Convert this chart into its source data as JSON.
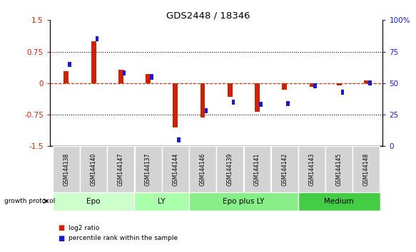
{
  "title": "GDS2448 / 18346",
  "samples": [
    "GSM144138",
    "GSM144140",
    "GSM144147",
    "GSM144137",
    "GSM144144",
    "GSM144146",
    "GSM144139",
    "GSM144141",
    "GSM144142",
    "GSM144143",
    "GSM144145",
    "GSM144148"
  ],
  "log2_ratio": [
    0.28,
    1.0,
    0.32,
    0.22,
    -1.05,
    -0.82,
    -0.32,
    -0.68,
    -0.15,
    -0.08,
    -0.05,
    0.07
  ],
  "percentile_rank": [
    65,
    85,
    58,
    55,
    5,
    28,
    35,
    33,
    34,
    48,
    43,
    50
  ],
  "groups": [
    {
      "label": "Epo",
      "start": 0,
      "end": 3
    },
    {
      "label": "LY",
      "start": 3,
      "end": 5
    },
    {
      "label": "Epo plus LY",
      "start": 5,
      "end": 9
    },
    {
      "label": "Medium",
      "start": 9,
      "end": 12
    }
  ],
  "group_colors": [
    "#ccffcc",
    "#aaffaa",
    "#88ee88",
    "#44cc44"
  ],
  "ylim_left": [
    -1.5,
    1.5
  ],
  "ylim_right": [
    0,
    100
  ],
  "yticks_left": [
    -1.5,
    -0.75,
    0,
    0.75,
    1.5
  ],
  "yticks_right": [
    0,
    25,
    50,
    75,
    100
  ],
  "hlines": [
    0.75,
    -0.75
  ],
  "bar_color_red": "#cc2200",
  "bar_color_blue": "#1a1acc",
  "growth_protocol_label": "growth protocol",
  "legend_red_label": "log2 ratio",
  "legend_blue_label": "percentile rank within the sample",
  "bar_width": 0.18,
  "square_size": 0.12
}
